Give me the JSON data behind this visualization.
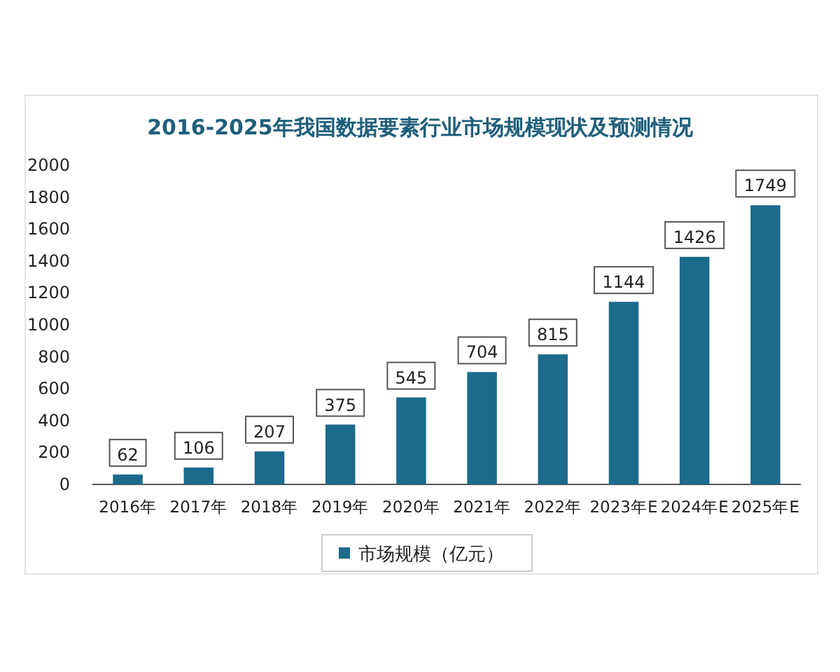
{
  "chart_data": {
    "type": "bar",
    "title": "2016-2025年我国数据要素行业市场规模现状及预测情况",
    "categories": [
      "2016年",
      "2017年",
      "2018年",
      "2019年",
      "2020年",
      "2021年",
      "2022年",
      "2023年E",
      "2024年E",
      "2025年E"
    ],
    "series": [
      {
        "name": "市场规模（亿元）",
        "color": "#1c6a8c",
        "values": [
          62,
          106,
          207,
          375,
          545,
          704,
          815,
          1144,
          1426,
          1749
        ]
      }
    ],
    "ylim": [
      0,
      2000
    ],
    "yticks": [
      0,
      200,
      400,
      600,
      800,
      1000,
      1200,
      1400,
      1600,
      1800,
      2000
    ],
    "data_labels": true,
    "legend": "bottom",
    "grid": false
  }
}
